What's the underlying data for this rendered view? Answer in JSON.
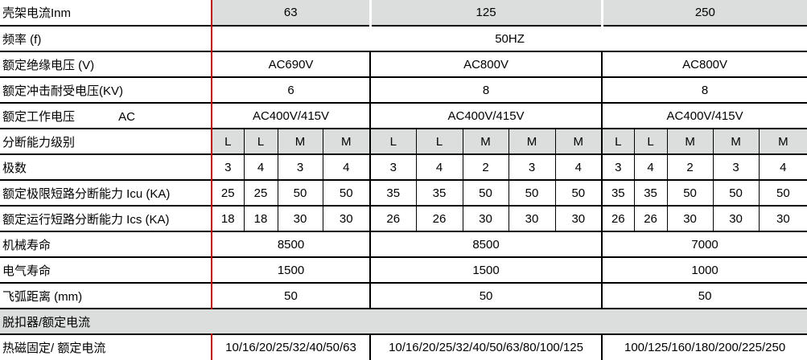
{
  "colors": {
    "accent_red": "#c00000",
    "header_gray": "#dcdddd",
    "grid_black": "#000000",
    "background": "#ffffff"
  },
  "table": {
    "column_groups": [
      {
        "label": "63",
        "subcolumns": 4
      },
      {
        "label": "125",
        "subcolumns": 5
      },
      {
        "label": "250",
        "subcolumns": 5
      }
    ],
    "rows": [
      {
        "label": "壳架电流Inm",
        "type": "group",
        "style": "frame-header",
        "values": [
          "63",
          "125",
          "250"
        ]
      },
      {
        "label": "频率 (f)",
        "type": "span",
        "values": [
          "50HZ"
        ]
      },
      {
        "label": "额定绝缘电压 (V)",
        "type": "group",
        "values": [
          "AC690V",
          "AC800V",
          "AC800V"
        ]
      },
      {
        "label": "额定冲击耐受电压(KV)",
        "type": "group",
        "values": [
          "6",
          "8",
          "8"
        ]
      },
      {
        "label": "额定工作电压             AC",
        "type": "group",
        "values": [
          "AC400V/415V",
          "AC400V/415V",
          "AC400V/415V"
        ]
      },
      {
        "label": "分断能力级别",
        "type": "sub",
        "style": "gray-header",
        "values": [
          "L",
          "L",
          "M",
          "M",
          "L",
          "L",
          "M",
          "M",
          "M",
          "L",
          "L",
          "M",
          "M",
          "M"
        ]
      },
      {
        "label": "极数",
        "type": "sub",
        "values": [
          "3",
          "4",
          "3",
          "4",
          "3",
          "4",
          "2",
          "3",
          "4",
          "3",
          "4",
          "2",
          "3",
          "4"
        ]
      },
      {
        "label": "额定极限短路分断能力 Icu (KA)",
        "type": "sub",
        "values": [
          "25",
          "25",
          "50",
          "50",
          "35",
          "35",
          "50",
          "50",
          "50",
          "35",
          "35",
          "50",
          "50",
          "50"
        ]
      },
      {
        "label": "额定运行短路分断能力 Ics (KA)",
        "type": "sub",
        "values": [
          "18",
          "18",
          "30",
          "30",
          "26",
          "26",
          "30",
          "30",
          "30",
          "26",
          "26",
          "30",
          "30",
          "30"
        ]
      },
      {
        "label": "机械寿命",
        "type": "group",
        "values": [
          "8500",
          "8500",
          "7000"
        ]
      },
      {
        "label": "电气寿命",
        "type": "group",
        "values": [
          "1500",
          "1500",
          "1000"
        ]
      },
      {
        "label": "飞弧距离 (mm)",
        "type": "group",
        "values": [
          "50",
          "50",
          "50"
        ]
      },
      {
        "label": "脱扣器/额定电流",
        "type": "full",
        "values": []
      },
      {
        "label": "热磁固定/ 额定电流",
        "type": "group",
        "values": [
          "10/16/20/25/32/40/50/63",
          "10/16/20/25/32/40/50/63/80/100/125",
          "100/125/160/180/200/225/250"
        ]
      }
    ]
  }
}
